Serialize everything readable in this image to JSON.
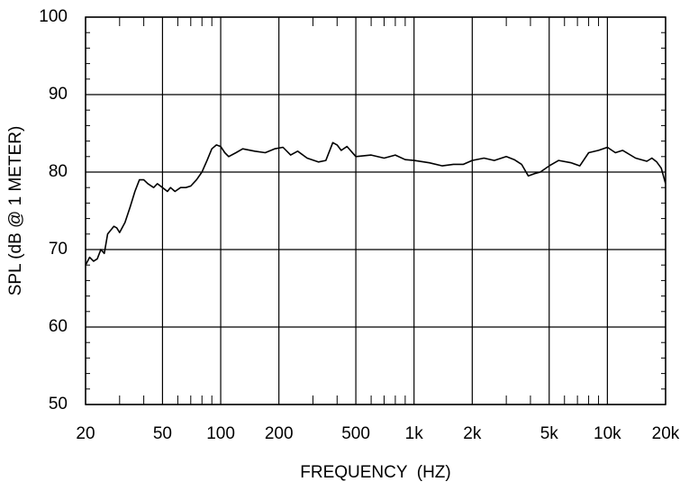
{
  "chart_data": {
    "type": "line",
    "log_x": true,
    "grid": true,
    "ylabel": "SPL (dB @ 1 METER)",
    "xlabel": "FREQUENCY  (HZ)",
    "xlim": [
      20,
      20000
    ],
    "ylim": [
      50,
      100
    ],
    "xticks": [
      20,
      50,
      100,
      200,
      500,
      {
        "value": 1000,
        "label": "1k"
      },
      {
        "value": 2000,
        "label": "2k"
      },
      {
        "value": 5000,
        "label": "5k"
      },
      {
        "value": 10000,
        "label": "10k"
      },
      {
        "value": 20000,
        "label": "20k"
      }
    ],
    "xminorticks": [
      30,
      40,
      60,
      70,
      80,
      90,
      300,
      400,
      600,
      700,
      800,
      900,
      3000,
      4000,
      6000,
      7000,
      8000,
      9000
    ],
    "yticks": [
      50,
      60,
      70,
      80,
      90,
      100
    ],
    "yminorticks": [
      52,
      54,
      56,
      58,
      62,
      64,
      66,
      68,
      72,
      74,
      76,
      78,
      82,
      84,
      86,
      88,
      92,
      94,
      96,
      98
    ],
    "series": [
      {
        "color": "#000000",
        "x": [
          20,
          21,
          22,
          23,
          24,
          25,
          26,
          28,
          29,
          30,
          32,
          34,
          36,
          38,
          40,
          42,
          45,
          47,
          50,
          53,
          55,
          58,
          62,
          66,
          70,
          75,
          80,
          85,
          90,
          95,
          100,
          105,
          110,
          120,
          130,
          150,
          170,
          190,
          210,
          230,
          250,
          280,
          320,
          350,
          380,
          400,
          420,
          450,
          500,
          600,
          700,
          800,
          900,
          1000,
          1200,
          1400,
          1600,
          1800,
          2000,
          2300,
          2600,
          3000,
          3300,
          3600,
          3900,
          4200,
          4500,
          5000,
          5600,
          6500,
          7200,
          8000,
          9000,
          10000,
          11000,
          12000,
          14000,
          16000,
          17000,
          18000,
          19000,
          20000
        ],
        "values": [
          68,
          69,
          68.5,
          68.8,
          70,
          69.5,
          72,
          73,
          72.8,
          72.2,
          73.5,
          75.5,
          77.5,
          79,
          79,
          78.5,
          78,
          78.5,
          78,
          77.5,
          78,
          77.5,
          78,
          78,
          78.2,
          79,
          80,
          81.5,
          83,
          83.5,
          83.3,
          82.5,
          82,
          82.5,
          83,
          82.7,
          82.5,
          83,
          83.2,
          82.2,
          82.7,
          81.8,
          81.3,
          81.5,
          83.8,
          83.5,
          82.8,
          83.3,
          82,
          82.2,
          81.8,
          82.2,
          81.6,
          81.5,
          81.2,
          80.8,
          81,
          81,
          81.5,
          81.8,
          81.5,
          82,
          81.6,
          81,
          79.5,
          79.8,
          80,
          80.8,
          81.5,
          81.2,
          80.8,
          82.5,
          82.8,
          83.2,
          82.5,
          82.8,
          81.8,
          81.4,
          81.8,
          81.3,
          80.5,
          78.5
        ]
      }
    ]
  }
}
